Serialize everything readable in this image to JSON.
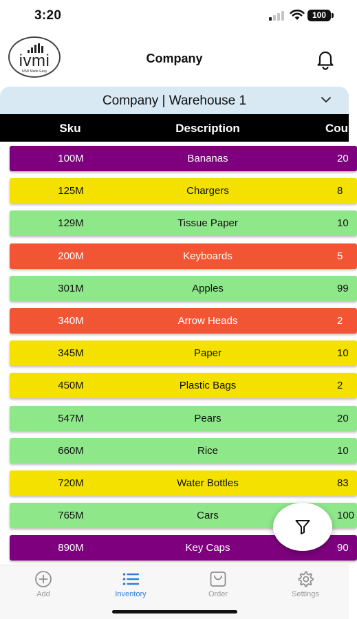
{
  "status_bar": {
    "time": "3:20",
    "battery": "100"
  },
  "header": {
    "logo_text": "ivmi",
    "logo_subtext": "IVMI Made Easy",
    "title": "Company"
  },
  "location": {
    "selected": "Company | Warehouse 1"
  },
  "table": {
    "columns": {
      "sku": "Sku",
      "description": "Description",
      "count": "Cou"
    },
    "rows": [
      {
        "sku": "100M",
        "description": "Bananas",
        "count": "20",
        "color": "#7e007e",
        "text_color": "#ffffff"
      },
      {
        "sku": "125M",
        "description": "Chargers",
        "count": "8",
        "color": "#f5e100",
        "text_color": "#111111"
      },
      {
        "sku": "129M",
        "description": "Tissue Paper",
        "count": "10",
        "color": "#8ee88a",
        "text_color": "#111111"
      },
      {
        "sku": "200M",
        "description": "Keyboards",
        "count": "5",
        "color": "#f25534",
        "text_color": "#ffffff"
      },
      {
        "sku": "301M",
        "description": "Apples",
        "count": "99",
        "color": "#8ee88a",
        "text_color": "#111111"
      },
      {
        "sku": "340M",
        "description": "Arrow Heads",
        "count": "2",
        "color": "#f25534",
        "text_color": "#ffffff"
      },
      {
        "sku": "345M",
        "description": "Paper",
        "count": "10",
        "color": "#f5e100",
        "text_color": "#111111"
      },
      {
        "sku": "450M",
        "description": "Plastic Bags",
        "count": "2",
        "color": "#f5e100",
        "text_color": "#111111"
      },
      {
        "sku": "547M",
        "description": "Pears",
        "count": "20",
        "color": "#8ee88a",
        "text_color": "#111111"
      },
      {
        "sku": "660M",
        "description": "Rice",
        "count": "10",
        "color": "#8ee88a",
        "text_color": "#111111"
      },
      {
        "sku": "720M",
        "description": "Water Bottles",
        "count": "83",
        "color": "#f5e100",
        "text_color": "#111111"
      },
      {
        "sku": "765M",
        "description": "Cars",
        "count": "100",
        "color": "#8ee88a",
        "text_color": "#111111"
      },
      {
        "sku": "890M",
        "description": "Key Caps",
        "count": "90",
        "color": "#7e007e",
        "text_color": "#ffffff"
      }
    ]
  },
  "fab": {
    "icon": "filter-icon"
  },
  "nav": {
    "items": [
      {
        "label": "Add",
        "icon": "plus-circle-icon",
        "active": false
      },
      {
        "label": "Inventory",
        "icon": "list-icon",
        "active": true
      },
      {
        "label": "Order",
        "icon": "shopping-bag-icon",
        "active": false
      },
      {
        "label": "Settings",
        "icon": "gear-icon",
        "active": false
      }
    ]
  },
  "colors": {
    "accent": "#2f7fd8",
    "purple": "#7e007e",
    "yellow": "#f5e100",
    "green": "#8ee88a",
    "red": "#f25534",
    "dropdown_bg": "#d8e9f4"
  }
}
